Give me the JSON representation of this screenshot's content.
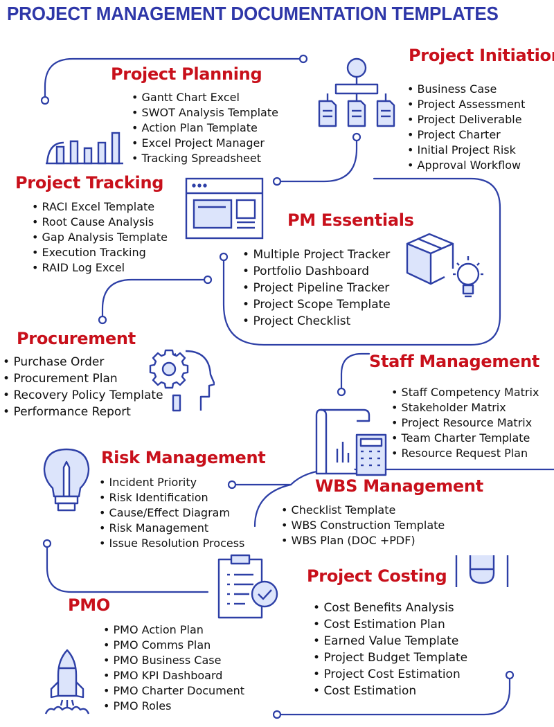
{
  "page_title": "PROJECT MANAGEMENT DOCUMENTATION TEMPLATES",
  "colors": {
    "title": "#2e37a8",
    "section": "#c8101b",
    "line": "#2d3fa6"
  },
  "sections": [
    {
      "key": "initiation",
      "title": "Project Initiation",
      "icon": "hierarchy-documents-icon",
      "items": [
        "Business Case",
        "Project Assessment",
        "Project Deliverable",
        "Project Charter",
        "Initial Project Risk",
        "Approval Workflow"
      ]
    },
    {
      "key": "planning",
      "title": "Project Planning",
      "icon": "bar-chart-icon",
      "items": [
        "Gantt Chart Excel",
        "SWOT Analysis Template",
        "Action Plan Template",
        "Excel Project Manager",
        "Tracking Spreadsheet"
      ]
    },
    {
      "key": "tracking",
      "title": "Project Tracking",
      "icon": "browser-window-icon",
      "items": [
        "RACI Excel Template",
        "Root Cause Analysis",
        "Gap Analysis Template",
        "Execution Tracking",
        "RAID Log Excel"
      ]
    },
    {
      "key": "essentials",
      "title": "PM Essentials",
      "icon": "box-lightbulb-icon",
      "items": [
        "Multiple Project Tracker",
        "Portfolio Dashboard",
        "Project Pipeline Tracker",
        "Project Scope Template",
        "Project Checklist"
      ]
    },
    {
      "key": "procurement",
      "title": "Procurement",
      "icon": "head-gear-icon",
      "items": [
        "Purchase Order",
        "Procurement Plan",
        "Recovery Policy Template",
        "Performance Report"
      ]
    },
    {
      "key": "staff",
      "title": "Staff Management",
      "icon": "report-calculator-icon",
      "items": [
        "Staff Competency Matrix",
        "Stakeholder Matrix",
        "Project Resource Matrix",
        "Team Charter Template",
        "Resource Request Plan"
      ]
    },
    {
      "key": "risk",
      "title": "Risk Management",
      "icon": "lightbulb-pencil-icon",
      "items": [
        "Incident Priority",
        "Risk Identification",
        "Cause/Effect Diagram",
        "Risk Management",
        "Issue Resolution Process"
      ]
    },
    {
      "key": "wbs",
      "title": "WBS Management",
      "icon": "",
      "items": [
        "Checklist Template",
        "WBS Construction Template",
        "WBS Plan (DOC +PDF)"
      ]
    },
    {
      "key": "costing",
      "title": "Project Costing",
      "icon": "clipboard-check-icon",
      "items": [
        "Cost Benefits Analysis",
        "Cost Estimation Plan",
        "Earned Value Template",
        "Project Budget Template",
        "Project Cost Estimation",
        "Cost Estimation"
      ]
    },
    {
      "key": "pmo",
      "title": "PMO",
      "icon": "rocket-icon",
      "items": [
        "PMO Action Plan",
        "PMO Comms Plan",
        "PMO Business Case",
        "PMO KPI Dashboard",
        "PMO Charter Document",
        "PMO Roles"
      ]
    }
  ]
}
